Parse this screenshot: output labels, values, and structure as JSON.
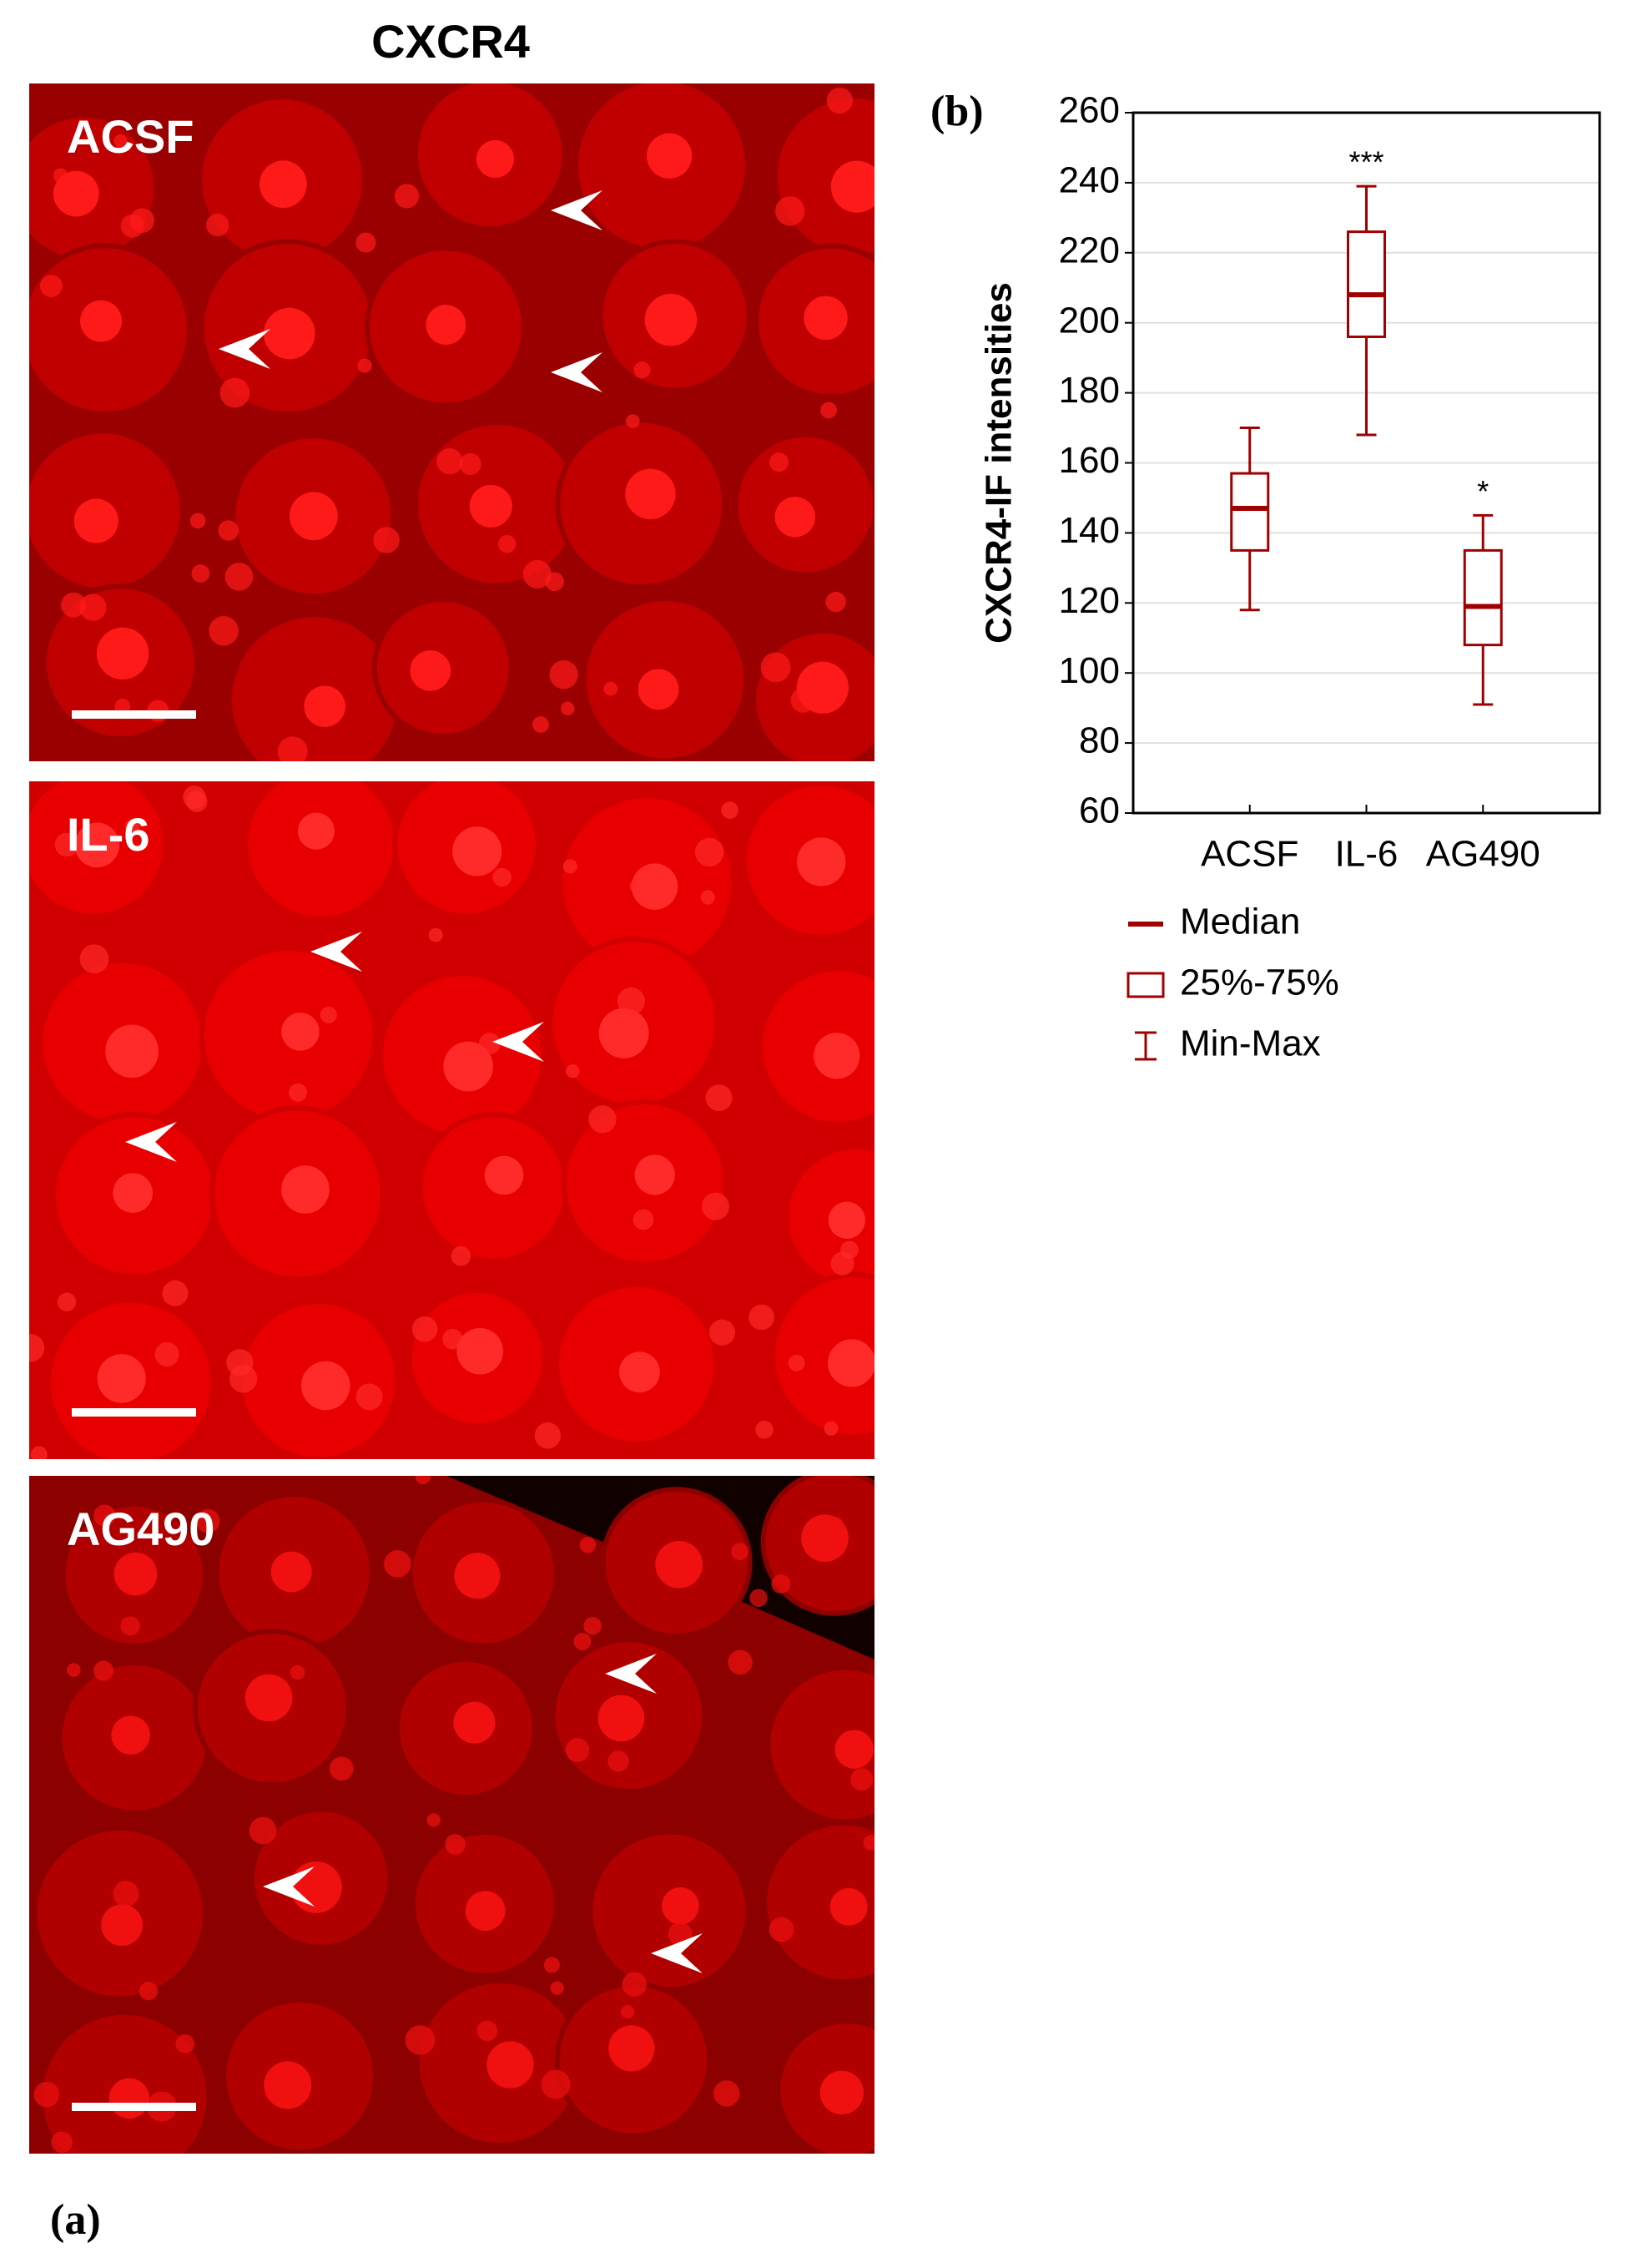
{
  "figure": {
    "column_title": "CXCR4",
    "panel_a_label": "(a)",
    "panel_b_label": "(b)",
    "panels": [
      "ACSF",
      "IL-6",
      "AG490"
    ]
  },
  "chart_data": {
    "type": "box",
    "y_label": "CXCR4-IF intensities",
    "categories": [
      "ACSF",
      "IL-6",
      "AG490"
    ],
    "series": {
      "min": [
        118,
        168,
        91
      ],
      "q1": [
        135,
        196,
        108
      ],
      "median": [
        147,
        208,
        119
      ],
      "q3": [
        157,
        226,
        135
      ],
      "max": [
        170,
        239,
        145
      ]
    },
    "significance": [
      null,
      "***",
      "*"
    ],
    "legend": [
      "Median",
      "25%-75%",
      "Min-Max"
    ],
    "color": "#a00000",
    "ylim": [
      60,
      260
    ],
    "yticks": [
      60,
      80,
      100,
      120,
      140,
      160,
      180,
      200,
      220,
      240,
      260
    ],
    "grid": true
  }
}
